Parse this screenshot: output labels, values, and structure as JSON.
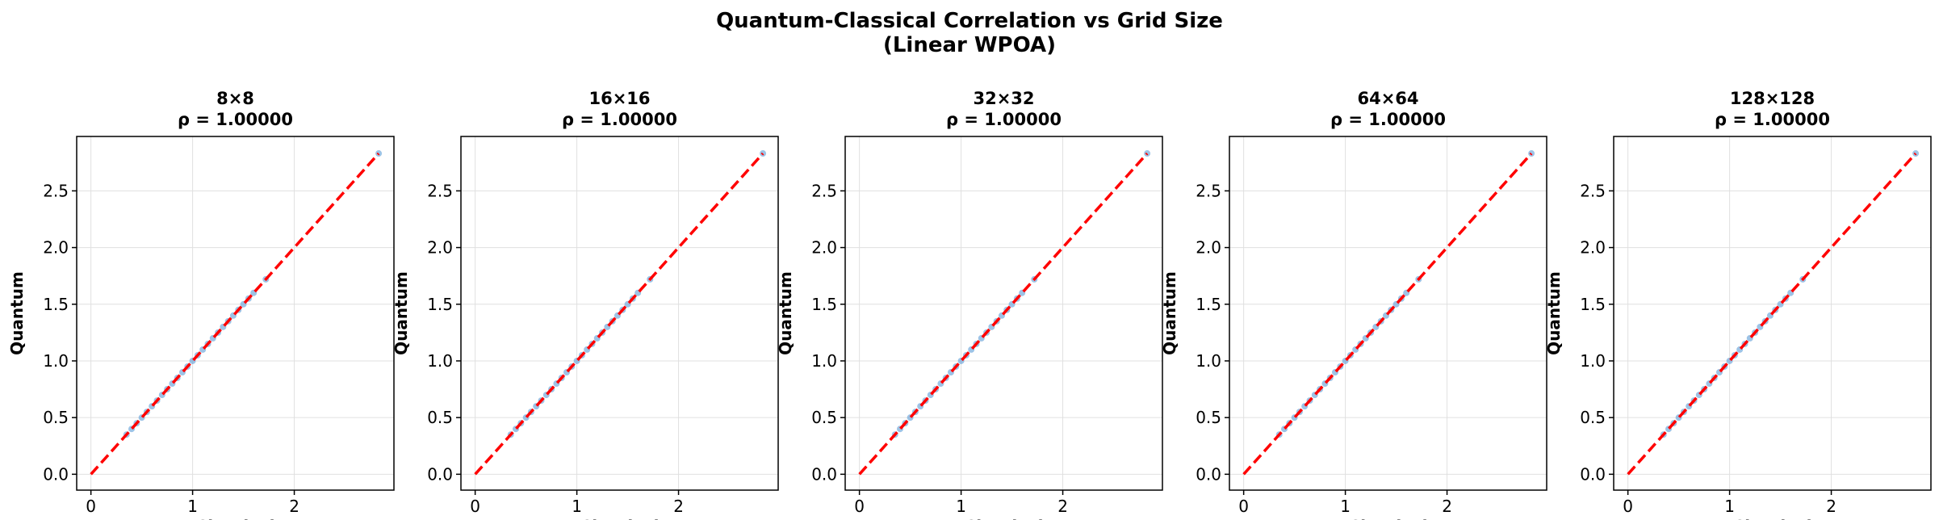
{
  "title": {
    "line1": "Quantum-Classical Correlation vs Grid Size",
    "line2": "(Linear WPOA)"
  },
  "colors": {
    "point": "#5b9bd5",
    "reference_line": "#ff0000",
    "grid": "#e0e0e0",
    "axes": "#000000"
  },
  "chart_data": [
    {
      "type": "scatter",
      "title": "8×8",
      "subtitle": "ρ = 1.00000",
      "xlabel": "Classical",
      "ylabel": "Quantum",
      "xlim": [
        -0.14,
        2.98
      ],
      "ylim": [
        -0.14,
        2.98
      ],
      "xticks": [
        0,
        1,
        2
      ],
      "xtick_labels": [
        "0",
        "1",
        "2"
      ],
      "yticks": [
        0.0,
        0.5,
        1.0,
        1.5,
        2.0,
        2.5
      ],
      "ytick_labels": [
        "0.0",
        "0.5",
        "1.0",
        "1.5",
        "2.0",
        "2.5"
      ],
      "grid": true,
      "reference_line": {
        "from": [
          0,
          0
        ],
        "to": [
          2.83,
          2.83
        ],
        "style": "dashed"
      },
      "points": [
        [
          0.35,
          0.35
        ],
        [
          0.4,
          0.4
        ],
        [
          0.45,
          0.45
        ],
        [
          0.5,
          0.5
        ],
        [
          0.55,
          0.55
        ],
        [
          0.6,
          0.6
        ],
        [
          0.65,
          0.65
        ],
        [
          0.7,
          0.7
        ],
        [
          0.75,
          0.75
        ],
        [
          0.8,
          0.8
        ],
        [
          0.85,
          0.85
        ],
        [
          0.9,
          0.9
        ],
        [
          0.95,
          0.95
        ],
        [
          1.0,
          1.0
        ],
        [
          1.05,
          1.05
        ],
        [
          1.1,
          1.1
        ],
        [
          1.15,
          1.15
        ],
        [
          1.2,
          1.2
        ],
        [
          1.25,
          1.25
        ],
        [
          1.3,
          1.3
        ],
        [
          1.35,
          1.35
        ],
        [
          1.4,
          1.4
        ],
        [
          1.45,
          1.45
        ],
        [
          1.5,
          1.5
        ],
        [
          1.55,
          1.55
        ],
        [
          1.6,
          1.6
        ],
        [
          1.72,
          1.72
        ],
        [
          2.83,
          2.83
        ]
      ]
    },
    {
      "type": "scatter",
      "title": "16×16",
      "subtitle": "ρ = 1.00000",
      "xlabel": "Classical",
      "ylabel": "Quantum",
      "xlim": [
        -0.14,
        2.98
      ],
      "ylim": [
        -0.14,
        2.98
      ],
      "xticks": [
        0,
        1,
        2
      ],
      "xtick_labels": [
        "0",
        "1",
        "2"
      ],
      "yticks": [
        0.0,
        0.5,
        1.0,
        1.5,
        2.0,
        2.5
      ],
      "ytick_labels": [
        "0.0",
        "0.5",
        "1.0",
        "1.5",
        "2.0",
        "2.5"
      ],
      "grid": true,
      "reference_line": {
        "from": [
          0,
          0
        ],
        "to": [
          2.83,
          2.83
        ],
        "style": "dashed"
      },
      "points": [
        [
          0.35,
          0.35
        ],
        [
          0.4,
          0.4
        ],
        [
          0.45,
          0.45
        ],
        [
          0.5,
          0.5
        ],
        [
          0.55,
          0.55
        ],
        [
          0.6,
          0.6
        ],
        [
          0.65,
          0.65
        ],
        [
          0.7,
          0.7
        ],
        [
          0.75,
          0.75
        ],
        [
          0.8,
          0.8
        ],
        [
          0.85,
          0.85
        ],
        [
          0.9,
          0.9
        ],
        [
          0.95,
          0.95
        ],
        [
          1.0,
          1.0
        ],
        [
          1.05,
          1.05
        ],
        [
          1.1,
          1.1
        ],
        [
          1.15,
          1.15
        ],
        [
          1.2,
          1.2
        ],
        [
          1.25,
          1.25
        ],
        [
          1.3,
          1.3
        ],
        [
          1.35,
          1.35
        ],
        [
          1.4,
          1.4
        ],
        [
          1.45,
          1.45
        ],
        [
          1.5,
          1.5
        ],
        [
          1.55,
          1.55
        ],
        [
          1.6,
          1.6
        ],
        [
          1.72,
          1.72
        ],
        [
          2.83,
          2.83
        ]
      ]
    },
    {
      "type": "scatter",
      "title": "32×32",
      "subtitle": "ρ = 1.00000",
      "xlabel": "Classical",
      "ylabel": "Quantum",
      "xlim": [
        -0.14,
        2.98
      ],
      "ylim": [
        -0.14,
        2.98
      ],
      "xticks": [
        0,
        1,
        2
      ],
      "xtick_labels": [
        "0",
        "1",
        "2"
      ],
      "yticks": [
        0.0,
        0.5,
        1.0,
        1.5,
        2.0,
        2.5
      ],
      "ytick_labels": [
        "0.0",
        "0.5",
        "1.0",
        "1.5",
        "2.0",
        "2.5"
      ],
      "grid": true,
      "reference_line": {
        "from": [
          0,
          0
        ],
        "to": [
          2.83,
          2.83
        ],
        "style": "dashed"
      },
      "points": [
        [
          0.35,
          0.35
        ],
        [
          0.4,
          0.4
        ],
        [
          0.45,
          0.45
        ],
        [
          0.5,
          0.5
        ],
        [
          0.55,
          0.55
        ],
        [
          0.6,
          0.6
        ],
        [
          0.65,
          0.65
        ],
        [
          0.7,
          0.7
        ],
        [
          0.75,
          0.75
        ],
        [
          0.8,
          0.8
        ],
        [
          0.85,
          0.85
        ],
        [
          0.9,
          0.9
        ],
        [
          0.95,
          0.95
        ],
        [
          1.0,
          1.0
        ],
        [
          1.05,
          1.05
        ],
        [
          1.1,
          1.1
        ],
        [
          1.15,
          1.15
        ],
        [
          1.2,
          1.2
        ],
        [
          1.25,
          1.25
        ],
        [
          1.3,
          1.3
        ],
        [
          1.35,
          1.35
        ],
        [
          1.4,
          1.4
        ],
        [
          1.45,
          1.45
        ],
        [
          1.5,
          1.5
        ],
        [
          1.55,
          1.55
        ],
        [
          1.6,
          1.6
        ],
        [
          1.72,
          1.72
        ],
        [
          2.83,
          2.83
        ]
      ]
    },
    {
      "type": "scatter",
      "title": "64×64",
      "subtitle": "ρ = 1.00000",
      "xlabel": "Classical",
      "ylabel": "Quantum",
      "xlim": [
        -0.14,
        2.98
      ],
      "ylim": [
        -0.14,
        2.98
      ],
      "xticks": [
        0,
        1,
        2
      ],
      "xtick_labels": [
        "0",
        "1",
        "2"
      ],
      "yticks": [
        0.0,
        0.5,
        1.0,
        1.5,
        2.0,
        2.5
      ],
      "ytick_labels": [
        "0.0",
        "0.5",
        "1.0",
        "1.5",
        "2.0",
        "2.5"
      ],
      "grid": true,
      "reference_line": {
        "from": [
          0,
          0
        ],
        "to": [
          2.83,
          2.83
        ],
        "style": "dashed"
      },
      "points": [
        [
          0.35,
          0.35
        ],
        [
          0.4,
          0.4
        ],
        [
          0.45,
          0.45
        ],
        [
          0.5,
          0.5
        ],
        [
          0.55,
          0.55
        ],
        [
          0.6,
          0.6
        ],
        [
          0.65,
          0.65
        ],
        [
          0.7,
          0.7
        ],
        [
          0.75,
          0.75
        ],
        [
          0.8,
          0.8
        ],
        [
          0.85,
          0.85
        ],
        [
          0.9,
          0.9
        ],
        [
          0.95,
          0.95
        ],
        [
          1.0,
          1.0
        ],
        [
          1.05,
          1.05
        ],
        [
          1.1,
          1.1
        ],
        [
          1.15,
          1.15
        ],
        [
          1.2,
          1.2
        ],
        [
          1.25,
          1.25
        ],
        [
          1.3,
          1.3
        ],
        [
          1.35,
          1.35
        ],
        [
          1.4,
          1.4
        ],
        [
          1.45,
          1.45
        ],
        [
          1.5,
          1.5
        ],
        [
          1.55,
          1.55
        ],
        [
          1.6,
          1.6
        ],
        [
          1.72,
          1.72
        ],
        [
          2.83,
          2.83
        ]
      ]
    },
    {
      "type": "scatter",
      "title": "128×128",
      "subtitle": "ρ = 1.00000",
      "xlabel": "Classical",
      "ylabel": "Quantum",
      "xlim": [
        -0.14,
        2.98
      ],
      "ylim": [
        -0.14,
        2.98
      ],
      "xticks": [
        0,
        1,
        2
      ],
      "xtick_labels": [
        "0",
        "1",
        "2"
      ],
      "yticks": [
        0.0,
        0.5,
        1.0,
        1.5,
        2.0,
        2.5
      ],
      "ytick_labels": [
        "0.0",
        "0.5",
        "1.0",
        "1.5",
        "2.0",
        "2.5"
      ],
      "grid": true,
      "reference_line": {
        "from": [
          0,
          0
        ],
        "to": [
          2.83,
          2.83
        ],
        "style": "dashed"
      },
      "points": [
        [
          0.35,
          0.35
        ],
        [
          0.4,
          0.4
        ],
        [
          0.45,
          0.45
        ],
        [
          0.5,
          0.5
        ],
        [
          0.55,
          0.55
        ],
        [
          0.6,
          0.6
        ],
        [
          0.65,
          0.65
        ],
        [
          0.7,
          0.7
        ],
        [
          0.75,
          0.75
        ],
        [
          0.8,
          0.8
        ],
        [
          0.85,
          0.85
        ],
        [
          0.9,
          0.9
        ],
        [
          0.95,
          0.95
        ],
        [
          1.0,
          1.0
        ],
        [
          1.05,
          1.05
        ],
        [
          1.1,
          1.1
        ],
        [
          1.15,
          1.15
        ],
        [
          1.2,
          1.2
        ],
        [
          1.25,
          1.25
        ],
        [
          1.3,
          1.3
        ],
        [
          1.35,
          1.35
        ],
        [
          1.4,
          1.4
        ],
        [
          1.45,
          1.45
        ],
        [
          1.5,
          1.5
        ],
        [
          1.55,
          1.55
        ],
        [
          1.6,
          1.6
        ],
        [
          1.72,
          1.72
        ],
        [
          2.83,
          2.83
        ]
      ]
    }
  ]
}
